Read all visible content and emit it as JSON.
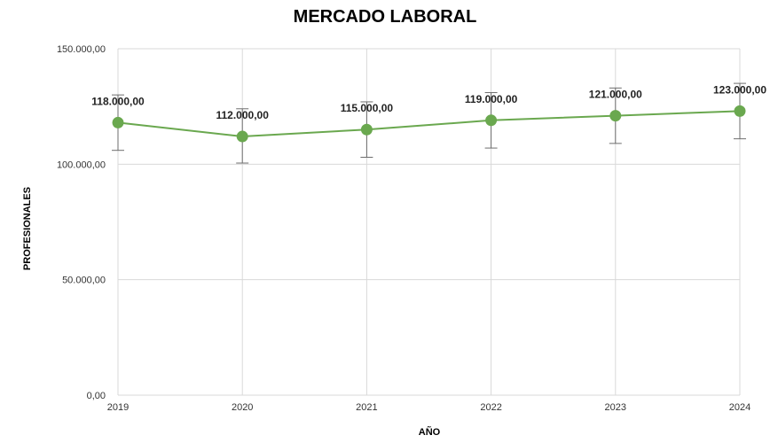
{
  "chart_data": {
    "type": "line",
    "title": "MERCADO LABORAL",
    "xlabel": "AÑO",
    "ylabel": "PROFESIONALES",
    "categories": [
      "2019",
      "2020",
      "2021",
      "2022",
      "2023",
      "2024"
    ],
    "series": [
      {
        "values": [
          118000,
          112000,
          115000,
          119000,
          121000,
          123000
        ],
        "data_labels": [
          "118.000,00",
          "112.000,00",
          "115.000,00",
          "119.000,00",
          "121.000,00",
          "123.000,00"
        ],
        "error_bars": {
          "upper": [
            130000,
            124000,
            127000,
            131000,
            133000,
            135000
          ],
          "lower": [
            106000,
            100500,
            103000,
            107000,
            109000,
            111000
          ]
        },
        "color": "#6aa84f"
      }
    ],
    "ylim": [
      0,
      150000
    ],
    "yticks": [
      0,
      50000,
      100000,
      150000
    ],
    "ytick_labels": [
      "0,00",
      "50.000,00",
      "100.000,00",
      "150.000,00"
    ],
    "grid": true,
    "colors": {
      "line": "#6aa84f",
      "error_bar": "#6d6d6d",
      "grid": "#d9d9d9"
    }
  }
}
